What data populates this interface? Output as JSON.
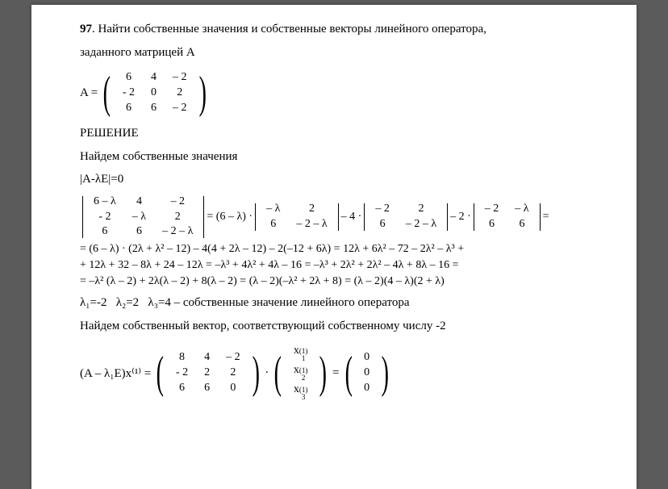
{
  "problem": {
    "number": "97",
    "text1": ". Найти собственные значения и собственные векторы линейного оператора,",
    "text2": "заданного матрицей А"
  },
  "matrixA": {
    "label": "A =",
    "rows": [
      [
        "6",
        "4",
        "– 2"
      ],
      [
        "- 2",
        "0",
        "2"
      ],
      [
        "6",
        "6",
        "– 2"
      ]
    ]
  },
  "solution_header": "РЕШЕНИЕ",
  "step1": "Найдем собственные значения",
  "eq_char": "|A-λE|=0",
  "det_main": {
    "rows": [
      [
        "6 – λ",
        "4",
        "– 2"
      ],
      [
        "- 2",
        "– λ",
        "2"
      ],
      [
        "6",
        "6",
        "– 2 – λ"
      ]
    ]
  },
  "expansion": {
    "pre1": "= (6 – λ) ·",
    "d1": [
      [
        "– λ",
        "2"
      ],
      [
        "6",
        "– 2 – λ"
      ]
    ],
    "mid1": "– 4 ·",
    "d2": [
      [
        "– 2",
        "2"
      ],
      [
        "6",
        "– 2 – λ"
      ]
    ],
    "mid2": "– 2 ·",
    "d3": [
      [
        "– 2",
        "– λ"
      ],
      [
        "6",
        "6"
      ]
    ],
    "end": "="
  },
  "expand_lines": {
    "l1": "= (6 – λ) · (2λ + λ² – 12) – 4(4 + 2λ – 12) – 2(–12 + 6λ) = 12λ + 6λ² – 72 – 2λ² – λ³ +",
    "l2": "+ 12λ + 32 – 8λ + 24 – 12λ = –λ³ + 4λ² + 4λ – 16 = –λ³ + 2λ² + 2λ² – 4λ + 8λ – 16 =",
    "l3": "= –λ² (λ – 2) + 2λ(λ – 2) + 8(λ – 2) = (λ – 2)(–λ² + 2λ + 8) = (λ – 2)(4 – λ)(2 + λ)"
  },
  "eigenvalues": "λ₁=-2   λ₂=2   λ₃=4 – собственные значение линейного оператора",
  "step2": "Найдем собственный вектор, соответствующий собственному числу -2",
  "eq2_label": "(A – λ₁E)x⁽¹⁾ =",
  "matrixM": {
    "rows": [
      [
        "8",
        "4",
        "– 2"
      ],
      [
        "- 2",
        "2",
        "2"
      ],
      [
        "6",
        "6",
        "0"
      ]
    ]
  },
  "dot": "·",
  "vectorX": {
    "rows": [
      [
        "x"
      ],
      [
        "x"
      ],
      [
        "x"
      ]
    ],
    "sup": "(1)",
    "subs": [
      "1",
      "2",
      "3"
    ]
  },
  "eq2_eq": "=",
  "vectorZero": {
    "rows": [
      [
        "0"
      ],
      [
        "0"
      ],
      [
        "0"
      ]
    ]
  }
}
